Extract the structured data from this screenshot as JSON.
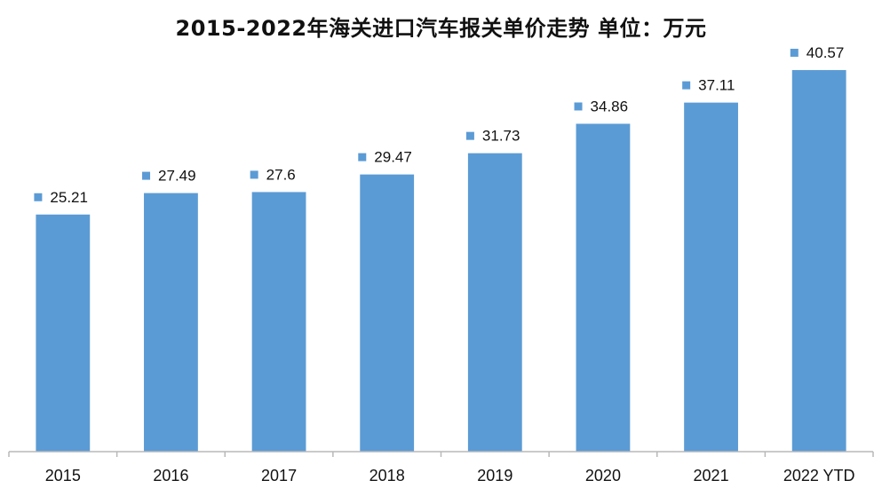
{
  "chart_data": {
    "type": "bar",
    "title": "2015-2022年海关进口汽车报关单价走势  单位：万元",
    "categories": [
      "2015",
      "2016",
      "2017",
      "2018",
      "2019",
      "2020",
      "2021",
      "2022 YTD"
    ],
    "series": [
      {
        "values": [
          25.21,
          27.49,
          27.6,
          29.47,
          31.73,
          34.86,
          37.11,
          40.57
        ],
        "color": "#5B9BD5"
      }
    ],
    "data_labels": [
      "25.21",
      "27.49",
      "27.6",
      "29.47",
      "31.73",
      "34.86",
      "37.11",
      "40.57"
    ],
    "ylim": [
      0,
      45
    ],
    "grid": false,
    "legend": "none",
    "xlabel": "",
    "ylabel": ""
  }
}
